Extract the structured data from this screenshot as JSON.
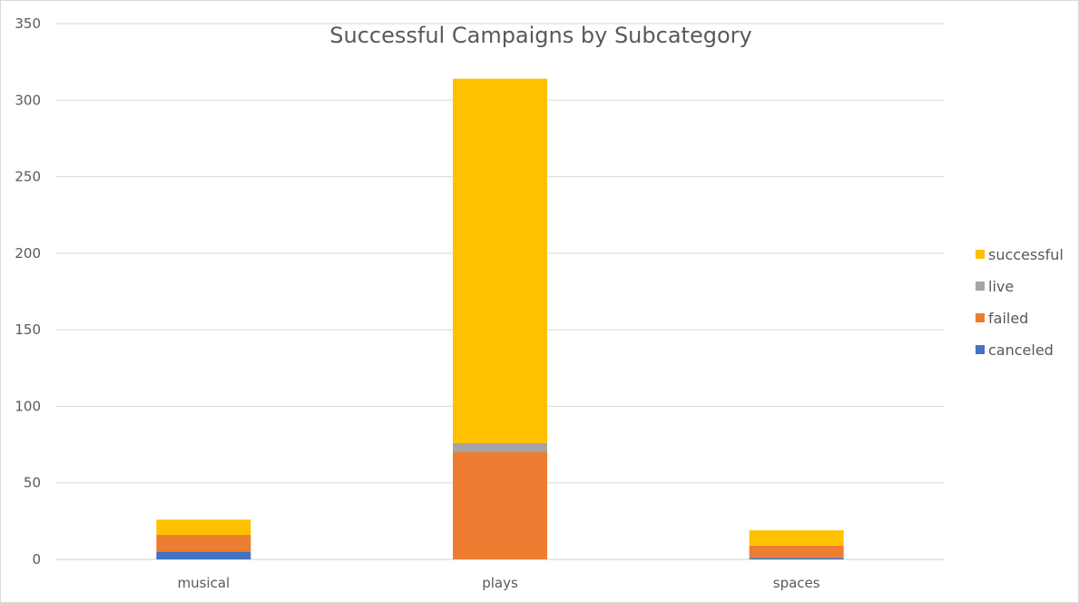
{
  "chart_data": {
    "type": "bar",
    "stacked": true,
    "title": "Successful Campaigns by Subcategory",
    "xlabel": "",
    "ylabel": "",
    "categories": [
      "musical",
      "plays",
      "spaces"
    ],
    "series": [
      {
        "name": "canceled",
        "color": "#4472c4",
        "values": [
          5,
          0,
          1
        ]
      },
      {
        "name": "failed",
        "color": "#ed7d31",
        "values": [
          11,
          70,
          8
        ]
      },
      {
        "name": "live",
        "color": "#a5a5a5",
        "values": [
          0,
          6,
          0
        ]
      },
      {
        "name": "successful",
        "color": "#ffc000",
        "values": [
          10,
          238,
          10
        ]
      }
    ],
    "ylim": [
      0,
      350
    ],
    "yticks": [
      0,
      50,
      100,
      150,
      200,
      250,
      300,
      350
    ],
    "grid": true,
    "legend_position": "right"
  }
}
